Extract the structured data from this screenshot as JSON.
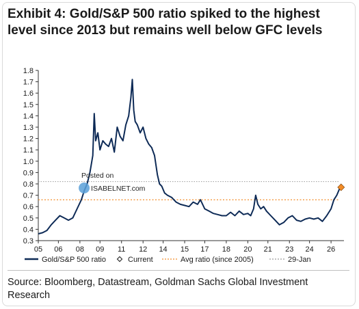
{
  "title_lines": [
    "Exhibit 4: Gold/S&P 500 ratio spiked to the highest",
    "level since 2013 but remains well below GFC levels"
  ],
  "source": {
    "line1": "Source: Bloomberg, Datastream, Goldman Sachs Global Investment",
    "line2": "Research"
  },
  "watermark": {
    "line1": "Posted on",
    "line2": "ISABELNET.com"
  },
  "chart_data": {
    "type": "line",
    "title": "",
    "xlabel": "",
    "ylabel": "",
    "ylim": [
      0.3,
      1.8
    ],
    "xlim": [
      2005,
      2026.3
    ],
    "y_ticks": [
      "0.3",
      "0.4",
      "0.5",
      "0.6",
      "0.7",
      "0.8",
      "0.9",
      "1.0",
      "1.1",
      "1.2",
      "1.3",
      "1.4",
      "1.5",
      "1.6",
      "1.7",
      "1.8"
    ],
    "x_ticks": [
      "05",
      "06",
      "08",
      "09",
      "11",
      "12",
      "14",
      "15",
      "17",
      "18",
      "20",
      "21",
      "23",
      "24",
      "26"
    ],
    "x_tick_values": [
      2005,
      2006.4,
      2007.9,
      2009.3,
      2010.8,
      2012.3,
      2013.7,
      2015.2,
      2016.6,
      2018.1,
      2019.6,
      2021,
      2022.5,
      2023.9,
      2025.4
    ],
    "grid": false,
    "legend_position": "bottom",
    "legend": [
      {
        "label": "Gold/S&P 500 ratio",
        "style": "line",
        "color": "#0d2a56"
      },
      {
        "label": "Current",
        "style": "diamond",
        "color": "#f28c28"
      },
      {
        "label": "Avg ratio (since 2005)",
        "style": "dotted",
        "color": "#f28c28"
      },
      {
        "label": "29-Jan",
        "style": "dotted",
        "color": "#999999"
      }
    ],
    "series": [
      {
        "name": "Gold/S&P 500 ratio",
        "color": "#0d2a56",
        "x": [
          2005.0,
          2005.3,
          2005.6,
          2005.9,
          2006.2,
          2006.5,
          2006.8,
          2007.1,
          2007.4,
          2007.7,
          2008.0,
          2008.2,
          2008.4,
          2008.6,
          2008.8,
          2008.9,
          2009.0,
          2009.15,
          2009.3,
          2009.5,
          2009.7,
          2009.9,
          2010.1,
          2010.3,
          2010.5,
          2010.7,
          2010.9,
          2011.1,
          2011.3,
          2011.45,
          2011.55,
          2011.65,
          2011.75,
          2011.9,
          2012.1,
          2012.3,
          2012.5,
          2012.7,
          2012.9,
          2013.1,
          2013.3,
          2013.45,
          2013.6,
          2013.8,
          2014.0,
          2014.3,
          2014.6,
          2014.9,
          2015.2,
          2015.5,
          2015.8,
          2016.1,
          2016.3,
          2016.6,
          2016.9,
          2017.2,
          2017.5,
          2017.8,
          2018.1,
          2018.4,
          2018.7,
          2019.0,
          2019.3,
          2019.6,
          2019.8,
          2020.0,
          2020.15,
          2020.3,
          2020.5,
          2020.7,
          2020.9,
          2021.2,
          2021.5,
          2021.8,
          2022.1,
          2022.4,
          2022.7,
          2023.0,
          2023.3,
          2023.6,
          2023.9,
          2024.2,
          2024.5,
          2024.8,
          2025.1,
          2025.4,
          2025.6,
          2025.8,
          2026.0,
          2026.1
        ],
        "values": [
          0.36,
          0.37,
          0.39,
          0.44,
          0.48,
          0.52,
          0.5,
          0.48,
          0.5,
          0.58,
          0.66,
          0.74,
          0.8,
          0.9,
          1.05,
          1.42,
          1.18,
          1.25,
          1.1,
          1.18,
          1.15,
          1.13,
          1.2,
          1.08,
          1.3,
          1.22,
          1.18,
          1.32,
          1.4,
          1.56,
          1.72,
          1.45,
          1.35,
          1.32,
          1.25,
          1.3,
          1.2,
          1.15,
          1.12,
          1.05,
          0.88,
          0.8,
          0.78,
          0.72,
          0.7,
          0.68,
          0.64,
          0.62,
          0.61,
          0.6,
          0.64,
          0.62,
          0.66,
          0.58,
          0.56,
          0.54,
          0.53,
          0.52,
          0.52,
          0.55,
          0.52,
          0.56,
          0.53,
          0.54,
          0.52,
          0.58,
          0.7,
          0.62,
          0.58,
          0.6,
          0.56,
          0.52,
          0.48,
          0.44,
          0.46,
          0.5,
          0.52,
          0.48,
          0.47,
          0.49,
          0.5,
          0.49,
          0.5,
          0.47,
          0.52,
          0.58,
          0.66,
          0.7,
          0.76,
          0.78
        ]
      }
    ],
    "current": {
      "x": 2026.1,
      "value": 0.77,
      "color": "#f28c28"
    },
    "avg_ratio": {
      "value": 0.66,
      "color": "#f28c28"
    },
    "jan29_level": {
      "value": 0.82,
      "color": "#999999"
    }
  }
}
